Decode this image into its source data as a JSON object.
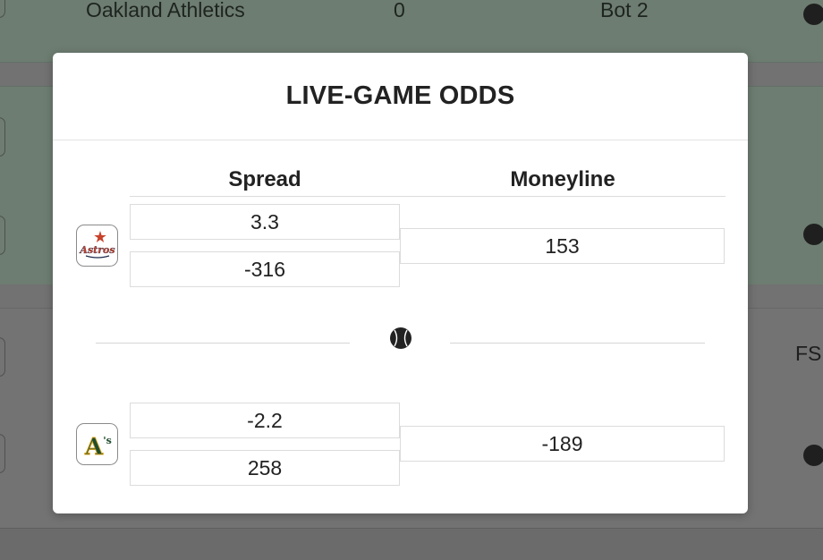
{
  "background": {
    "row1": {
      "team": "Oakland Athletics",
      "score": "0",
      "inning": "Bot 2"
    },
    "row3": {
      "network": "FS"
    }
  },
  "modal": {
    "title": "LIVE-GAME ODDS",
    "columns": {
      "spread": "Spread",
      "moneyline": "Moneyline"
    },
    "teams": [
      {
        "logo_icon": "astros-logo-icon",
        "spread_line": "3.3",
        "spread_odds": "-316",
        "moneyline": "153"
      },
      {
        "logo_icon": "athletics-logo-icon",
        "spread_line": "-2.2",
        "spread_odds": "258",
        "moneyline": "-189"
      }
    ],
    "divider_icon": "baseball-icon"
  },
  "colors": {
    "overlay_green": "#6d7d71",
    "overlay_gray": "#737373",
    "astros_orange": "#c8412a",
    "astros_navy": "#1b2a4a",
    "athletics_green": "#1f4d2e",
    "athletics_gold": "#d9a521"
  }
}
